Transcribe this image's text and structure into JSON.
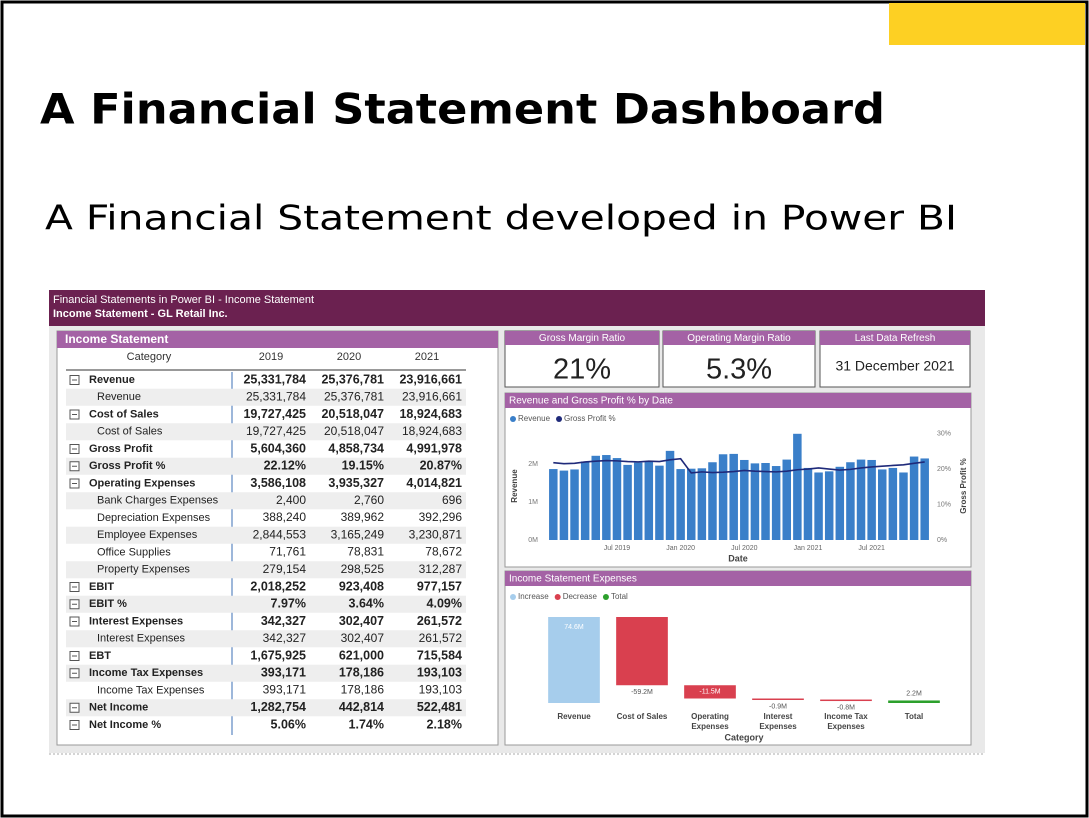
{
  "slide": {
    "title": "A Financial Statement Dashboard",
    "subtitle": "A Financial Statement developed in Power BI"
  },
  "dashboard": {
    "header": {
      "line1": "Financial Statements in Power BI - Income Statement",
      "line2": "Income Statement - GL Retail Inc."
    },
    "table": {
      "title": "Income Statement",
      "columns": [
        "Category",
        "2019",
        "2020",
        "2021"
      ],
      "sections": [
        {
          "label": "Revenue",
          "values": [
            "25,331,784",
            "25,376,781",
            "23,916,661"
          ],
          "children": [
            {
              "label": "Revenue",
              "values": [
                "25,331,784",
                "25,376,781",
                "23,916,661"
              ]
            }
          ]
        },
        {
          "label": "Cost of Sales",
          "values": [
            "19,727,425",
            "20,518,047",
            "18,924,683"
          ],
          "children": [
            {
              "label": "Cost of Sales",
              "values": [
                "19,727,425",
                "20,518,047",
                "18,924,683"
              ]
            }
          ]
        },
        {
          "label": "Gross Profit",
          "values": [
            "5,604,360",
            "4,858,734",
            "4,991,978"
          ]
        },
        {
          "label": "Gross Profit %",
          "values": [
            "22.12%",
            "19.15%",
            "20.87%"
          ]
        },
        {
          "label": "Operating Expenses",
          "values": [
            "3,586,108",
            "3,935,327",
            "4,014,821"
          ],
          "children": [
            {
              "label": "Bank Charges Expenses",
              "values": [
                "2,400",
                "2,760",
                "696"
              ]
            },
            {
              "label": "Depreciation Expenses",
              "values": [
                "388,240",
                "389,962",
                "392,296"
              ]
            },
            {
              "label": "Employee Expenses",
              "values": [
                "2,844,553",
                "3,165,249",
                "3,230,871"
              ]
            },
            {
              "label": "Office Supplies",
              "values": [
                "71,761",
                "78,831",
                "78,672"
              ]
            },
            {
              "label": "Property Expenses",
              "values": [
                "279,154",
                "298,525",
                "312,287"
              ]
            }
          ]
        },
        {
          "label": "EBIT",
          "values": [
            "2,018,252",
            "923,408",
            "977,157"
          ]
        },
        {
          "label": "EBIT %",
          "values": [
            "7.97%",
            "3.64%",
            "4.09%"
          ]
        },
        {
          "label": "Interest Expenses",
          "values": [
            "342,327",
            "302,407",
            "261,572"
          ],
          "children": [
            {
              "label": "Interest Expenses",
              "values": [
                "342,327",
                "302,407",
                "261,572"
              ]
            }
          ]
        },
        {
          "label": "EBT",
          "values": [
            "1,675,925",
            "621,000",
            "715,584"
          ]
        },
        {
          "label": "Income Tax Expenses",
          "values": [
            "393,171",
            "178,186",
            "193,103"
          ],
          "children": [
            {
              "label": "Income Tax Expenses",
              "values": [
                "393,171",
                "178,186",
                "193,103"
              ]
            }
          ]
        },
        {
          "label": "Net Income",
          "values": [
            "1,282,754",
            "442,814",
            "522,481"
          ]
        },
        {
          "label": "Net Income %",
          "values": [
            "5.06%",
            "1.74%",
            "2.18%"
          ]
        }
      ]
    },
    "cards": [
      {
        "title": "Gross Margin Ratio",
        "value": "21%"
      },
      {
        "title": "Operating Margin Ratio",
        "value": "5.3%"
      },
      {
        "title": "Last Data Refresh",
        "value": "31 December 2021"
      }
    ]
  },
  "chart_data": [
    {
      "type": "combo",
      "title": "Revenue and Gross Profit % by Date",
      "x_label": "Date",
      "y_label": "Revenue",
      "y2_label": "Gross Profit %",
      "categories": [
        null,
        null,
        null,
        null,
        null,
        null,
        "Jul 2019",
        null,
        null,
        null,
        null,
        null,
        "Jan 2020",
        null,
        null,
        null,
        null,
        null,
        "Jul 2020",
        null,
        null,
        null,
        null,
        null,
        "Jan 2021",
        null,
        null,
        null,
        null,
        null,
        "Jul 2021",
        null,
        null,
        null,
        null,
        null
      ],
      "series": [
        {
          "name": "Revenue",
          "type": "bar",
          "color": "#3a7fc9",
          "values": [
            1870000,
            1830000,
            1860000,
            2070000,
            2220000,
            2240000,
            2160000,
            1980000,
            2040000,
            2060000,
            1960000,
            2350000,
            1870000,
            1880000,
            1890000,
            2050000,
            2260000,
            2270000,
            2110000,
            2020000,
            2030000,
            1950000,
            2120000,
            2800000,
            1900000,
            1780000,
            1810000,
            1930000,
            2050000,
            2120000,
            2110000,
            1860000,
            1900000,
            1780000,
            2200000,
            2150000
          ]
        },
        {
          "name": "Gross Profit %",
          "type": "line",
          "axis": "y2",
          "color": "#1f2a7a",
          "values": [
            21.8,
            21.5,
            21.6,
            22.0,
            22.2,
            22.4,
            22.3,
            22.1,
            22.0,
            22.2,
            22.1,
            22.6,
            22.9,
            18.9,
            19.2,
            19.0,
            19.1,
            19.3,
            19.6,
            19.4,
            19.3,
            19.2,
            19.4,
            19.8,
            20.0,
            20.3,
            20.0,
            19.7,
            19.9,
            20.3,
            20.6,
            20.8,
            21.0,
            21.2,
            21.6,
            22.0
          ]
        }
      ],
      "ylim": [
        0,
        2900000
      ],
      "yticks": [
        {
          "value": 0,
          "label": "0M"
        },
        {
          "value": 1000000,
          "label": "1M"
        },
        {
          "value": 2000000,
          "label": "2M"
        }
      ],
      "y2lim": [
        0,
        31
      ],
      "y2ticks": [
        {
          "value": 0,
          "label": "0%"
        },
        {
          "value": 10,
          "label": "10%"
        },
        {
          "value": 20,
          "label": "20%"
        },
        {
          "value": 30,
          "label": "30%"
        }
      ]
    },
    {
      "type": "waterfall",
      "title": "Income Statement Expenses",
      "x_label": "Category",
      "categories": [
        "Revenue",
        "Cost of Sales",
        "Operating Expenses",
        "Interest Expenses",
        "Income Tax Expenses",
        "Total"
      ],
      "values": [
        74.6,
        -59.2,
        -11.5,
        -0.9,
        -0.8,
        2.2
      ],
      "value_labels": [
        "74.6M",
        "-59.2M",
        "-11.5M",
        "-0.9M",
        "-0.8M",
        "2.2M"
      ],
      "legend": [
        {
          "name": "Increase",
          "color": "#a6cdec"
        },
        {
          "name": "Decrease",
          "color": "#d9404f"
        },
        {
          "name": "Total",
          "color": "#2ca02c"
        }
      ]
    }
  ]
}
